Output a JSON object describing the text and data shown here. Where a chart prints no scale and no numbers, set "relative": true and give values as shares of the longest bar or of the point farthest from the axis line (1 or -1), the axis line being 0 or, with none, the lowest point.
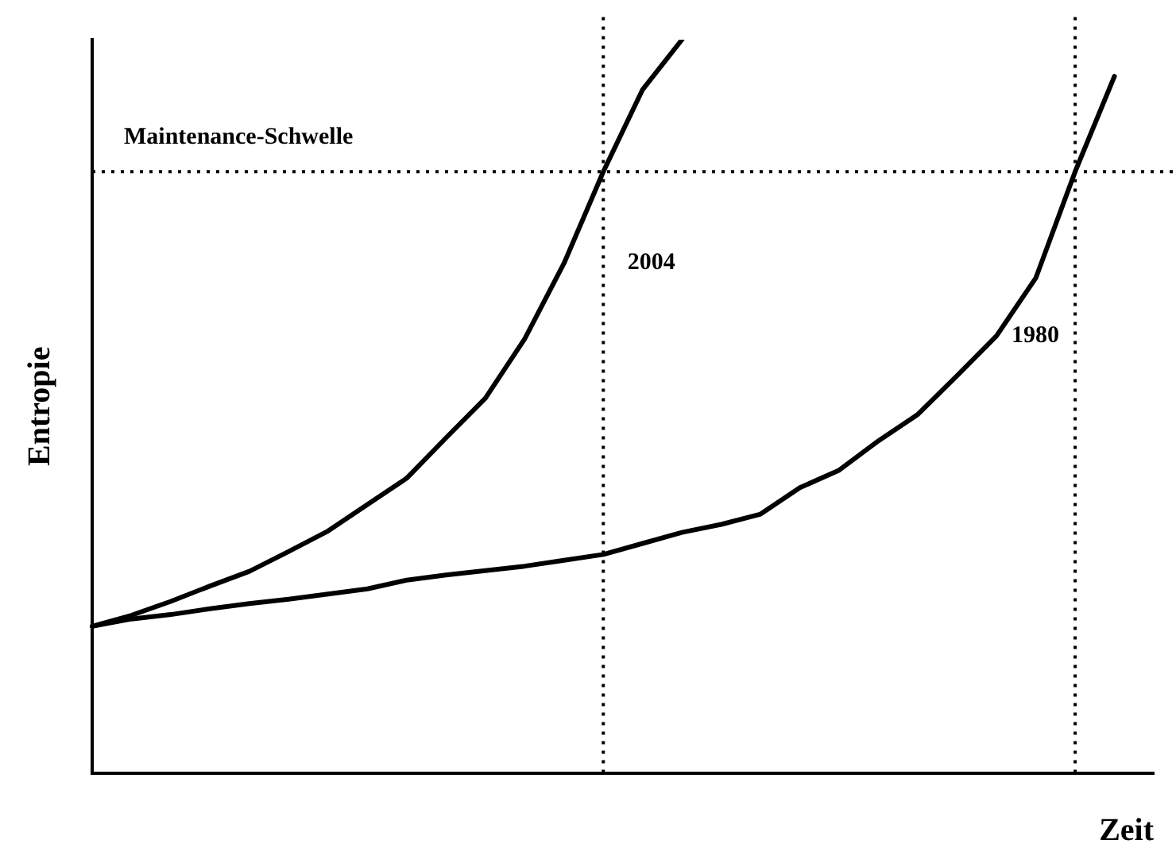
{
  "chart_data": {
    "type": "line",
    "relative": true,
    "xlabel": "Zeit",
    "ylabel": "Entropie",
    "grid": false,
    "legend": false,
    "marker": "none",
    "line_style": "solid",
    "categories": [
      null,
      null,
      null,
      null,
      null,
      null,
      null,
      null,
      null,
      null,
      null,
      null,
      null,
      null,
      null,
      null,
      null,
      null,
      null,
      null,
      null,
      null,
      null,
      null,
      null,
      null,
      null,
      null
    ],
    "series": [
      {
        "name": "2004",
        "color": "#000000",
        "values": [
          0.2,
          0.215,
          0.234,
          0.255,
          0.275,
          0.302,
          0.33,
          0.366,
          0.402,
          0.457,
          0.511,
          0.592,
          0.695,
          0.82,
          0.932,
          1.0,
          null,
          null,
          null,
          null,
          null,
          null,
          null,
          null,
          null,
          null,
          null,
          null
        ]
      },
      {
        "name": "1980",
        "color": "#000000",
        "values": [
          0.2,
          0.21,
          0.216,
          0.224,
          0.231,
          0.237,
          0.244,
          0.251,
          0.263,
          0.27,
          0.276,
          0.282,
          0.29,
          0.298,
          0.313,
          0.328,
          0.339,
          0.353,
          0.389,
          0.413,
          0.453,
          0.489,
          0.542,
          0.596,
          0.675,
          0.82,
          0.95,
          null
        ]
      }
    ],
    "ref_lines": [
      {
        "axis": "y",
        "value": 0.82,
        "label": "Maintenance-Schwelle",
        "line_style": "dotted"
      }
    ]
  }
}
